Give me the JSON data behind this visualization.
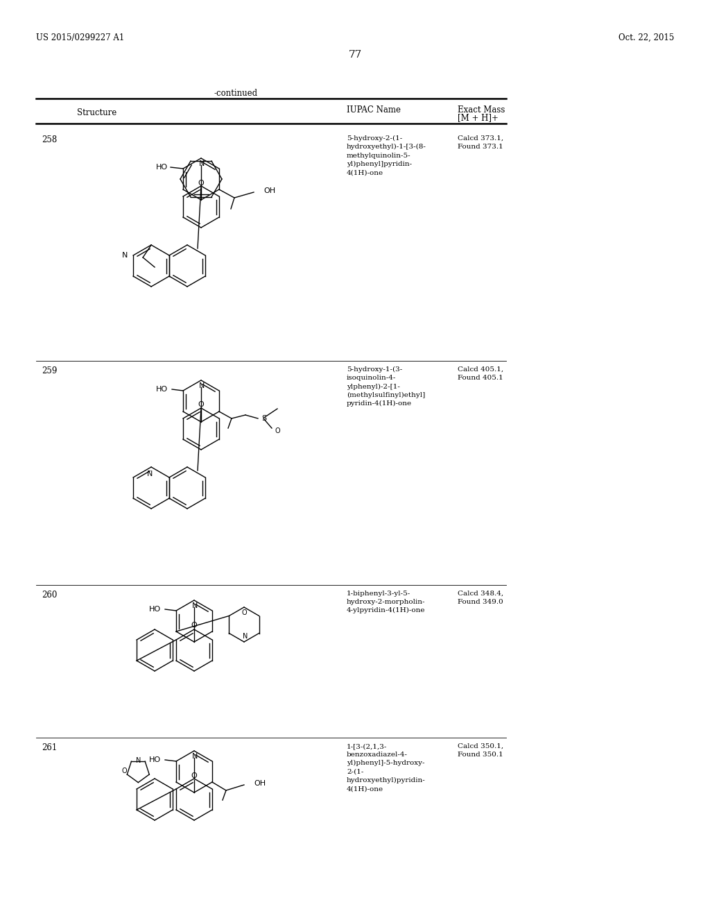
{
  "page_number": "77",
  "patent_number": "US 2015/0299227 A1",
  "patent_date": "Oct. 22, 2015",
  "continued_label": "-continued",
  "col1_header": "Structure",
  "col2_header": "IUPAC Name",
  "col3_header_line1": "Exact Mass",
  "col3_header_line2": "[M + H]+",
  "rows": [
    {
      "number": "258",
      "iupac": "5-hydroxy-2-(1-\nhydroxyethyl)-1-[3-(8-\nmethylquinolin-5-\nyl)phenyl]pyridin-\n4(1H)-one",
      "mass": "Calcd 373.1,\nFound 373.1"
    },
    {
      "number": "259",
      "iupac": "5-hydroxy-1-(3-\nisoquinolin-4-\nylphenyl)-2-[1-\n(methylsulfinyl)ethyl]\npyridin-4(1H)-one",
      "mass": "Calcd 405.1,\nFound 405.1"
    },
    {
      "number": "260",
      "iupac": "1-biphenyl-3-yl-5-\nhydroxy-2-morpholin-\n4-ylpyridin-4(1H)-one",
      "mass": "Calcd 348.4,\nFound 349.0"
    },
    {
      "number": "261",
      "iupac": "1-[3-(2,1,3-\nbenzoxadiazel-4-\nyl)phenyl]-5-hydroxy-\n2-(1-\nhydroxyethyl)pyridin-\n4(1H)-one",
      "mass": "Calcd 350.1,\nFound 350.1"
    }
  ],
  "bg_color": "#ffffff",
  "text_color": "#000000"
}
